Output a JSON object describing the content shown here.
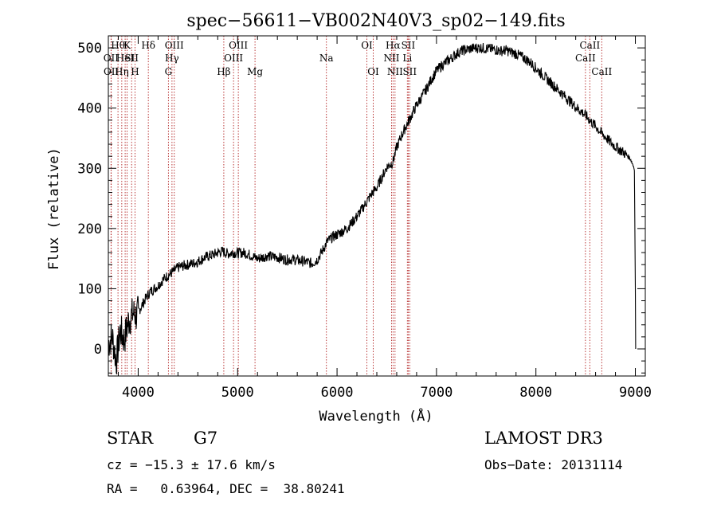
{
  "chart_data": {
    "type": "line",
    "title": "spec−56611−VB002N40V3_sp02−149.fits",
    "xlabel": "Wavelength (Å)",
    "ylabel": "Flux (relative)",
    "xlim": [
      3700,
      9100
    ],
    "ylim": [
      -45,
      520
    ],
    "x_ticks": [
      4000,
      5000,
      6000,
      7000,
      8000,
      9000
    ],
    "y_ticks": [
      0,
      100,
      200,
      300,
      400,
      500
    ],
    "series": [
      {
        "name": "flux",
        "points": [
          [
            3700,
            10
          ],
          [
            3740,
            20
          ],
          [
            3780,
            -20
          ],
          [
            3820,
            30
          ],
          [
            3860,
            15
          ],
          [
            3900,
            45
          ],
          [
            3950,
            60
          ],
          [
            3980,
            55
          ],
          [
            4030,
            70
          ],
          [
            4080,
            85
          ],
          [
            4120,
            95
          ],
          [
            4160,
            100
          ],
          [
            4200,
            105
          ],
          [
            4250,
            115
          ],
          [
            4300,
            122
          ],
          [
            4350,
            128
          ],
          [
            4400,
            135
          ],
          [
            4450,
            138
          ],
          [
            4500,
            140
          ],
          [
            4550,
            142
          ],
          [
            4600,
            145
          ],
          [
            4650,
            150
          ],
          [
            4700,
            154
          ],
          [
            4750,
            156
          ],
          [
            4800,
            160
          ],
          [
            4850,
            162
          ],
          [
            4900,
            158
          ],
          [
            4950,
            160
          ],
          [
            5000,
            159
          ],
          [
            5050,
            160
          ],
          [
            5100,
            158
          ],
          [
            5150,
            154
          ],
          [
            5200,
            150
          ],
          [
            5250,
            152
          ],
          [
            5300,
            155
          ],
          [
            5350,
            153
          ],
          [
            5400,
            152
          ],
          [
            5450,
            150
          ],
          [
            5500,
            148
          ],
          [
            5550,
            149
          ],
          [
            5600,
            147
          ],
          [
            5650,
            146
          ],
          [
            5700,
            144
          ],
          [
            5750,
            142
          ],
          [
            5800,
            148
          ],
          [
            5850,
            162
          ],
          [
            5900,
            178
          ],
          [
            5950,
            185
          ],
          [
            6000,
            190
          ],
          [
            6050,
            195
          ],
          [
            6100,
            200
          ],
          [
            6150,
            210
          ],
          [
            6200,
            220
          ],
          [
            6250,
            232
          ],
          [
            6300,
            245
          ],
          [
            6350,
            258
          ],
          [
            6400,
            268
          ],
          [
            6450,
            285
          ],
          [
            6500,
            302
          ],
          [
            6560,
            310
          ],
          [
            6600,
            335
          ],
          [
            6650,
            355
          ],
          [
            6700,
            372
          ],
          [
            6750,
            388
          ],
          [
            6800,
            405
          ],
          [
            6850,
            418
          ],
          [
            6900,
            432
          ],
          [
            6950,
            448
          ],
          [
            7000,
            462
          ],
          [
            7050,
            470
          ],
          [
            7100,
            477
          ],
          [
            7150,
            483
          ],
          [
            7200,
            490
          ],
          [
            7250,
            495
          ],
          [
            7300,
            497
          ],
          [
            7350,
            499
          ],
          [
            7400,
            500
          ],
          [
            7450,
            500
          ],
          [
            7500,
            499
          ],
          [
            7550,
            498
          ],
          [
            7600,
            497
          ],
          [
            7650,
            495
          ],
          [
            7700,
            496
          ],
          [
            7750,
            493
          ],
          [
            7800,
            490
          ],
          [
            7850,
            486
          ],
          [
            7900,
            481
          ],
          [
            7950,
            475
          ],
          [
            8000,
            466
          ],
          [
            8050,
            458
          ],
          [
            8100,
            450
          ],
          [
            8150,
            442
          ],
          [
            8200,
            434
          ],
          [
            8250,
            426
          ],
          [
            8300,
            418
          ],
          [
            8350,
            410
          ],
          [
            8400,
            402
          ],
          [
            8450,
            395
          ],
          [
            8500,
            388
          ],
          [
            8550,
            378
          ],
          [
            8600,
            370
          ],
          [
            8650,
            360
          ],
          [
            8700,
            352
          ],
          [
            8750,
            343
          ],
          [
            8800,
            336
          ],
          [
            8850,
            330
          ],
          [
            8900,
            324
          ],
          [
            8950,
            316
          ],
          [
            8990,
            300
          ],
          [
            9000,
            100
          ],
          [
            9003,
            0
          ]
        ]
      }
    ],
    "line_markers": [
      {
        "x": 3727,
        "label": "OII",
        "row": 2
      },
      {
        "x": 3729,
        "label": "OII",
        "row": 3
      },
      {
        "x": 3797,
        "label": "Hθ",
        "row": 1
      },
      {
        "x": 3835,
        "label": "Hη",
        "row": 3
      },
      {
        "x": 3869,
        "label": "HeI",
        "row": 2
      },
      {
        "x": 3889,
        "label": "K",
        "row": 1
      },
      {
        "x": 3934,
        "label": "SII",
        "row": 2
      },
      {
        "x": 3968,
        "label": "H",
        "row": 3
      },
      {
        "x": 4102,
        "label": "Hδ",
        "row": 1
      },
      {
        "x": 4304,
        "label": "G",
        "row": 3
      },
      {
        "x": 4340,
        "label": "Hγ",
        "row": 2
      },
      {
        "x": 4363,
        "label": "OIII",
        "row": 1
      },
      {
        "x": 4861,
        "label": "Hβ",
        "row": 3
      },
      {
        "x": 4959,
        "label": "OIII",
        "row": 2
      },
      {
        "x": 5007,
        "label": "OIII",
        "row": 1
      },
      {
        "x": 5175,
        "label": "Mg",
        "row": 3
      },
      {
        "x": 5893,
        "label": "Na",
        "row": 2
      },
      {
        "x": 6300,
        "label": "OI",
        "row": 1
      },
      {
        "x": 6364,
        "label": "OI",
        "row": 3
      },
      {
        "x": 6548,
        "label": "NII",
        "row": 2
      },
      {
        "x": 6563,
        "label": "Hα",
        "row": 1
      },
      {
        "x": 6583,
        "label": "NII",
        "row": 3
      },
      {
        "x": 6707,
        "label": "Li",
        "row": 2
      },
      {
        "x": 6716,
        "label": "SII",
        "row": 1
      },
      {
        "x": 6731,
        "label": "SII",
        "row": 3
      },
      {
        "x": 8498,
        "label": "CaII",
        "row": 2
      },
      {
        "x": 8542,
        "label": "CaII",
        "row": 1
      },
      {
        "x": 8662,
        "label": "CaII",
        "row": 3
      }
    ]
  },
  "info": {
    "object_class": "STAR",
    "subclass": "G7",
    "survey": "LAMOST DR3",
    "redshift": "cz = −15.3 ± 17.6 km/s",
    "obs_date": "Obs−Date: 20131114",
    "coords": "RA =   0.63964, DEC =  38.80241"
  }
}
